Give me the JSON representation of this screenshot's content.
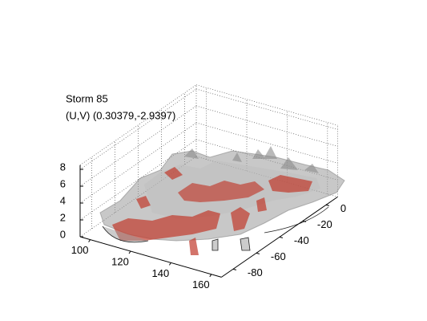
{
  "chart_data": {
    "type": "isosurface3d",
    "title": "Storm 85",
    "subtitle": "(U,V) (0.30379,-2.9397)",
    "xlim": [
      95,
      165
    ],
    "xticks": [
      100,
      120,
      140,
      160
    ],
    "ylim": [
      -90,
      10
    ],
    "yticks": [
      0,
      -20,
      -40,
      -60,
      -80
    ],
    "zlim": [
      0,
      8.5
    ],
    "zticks": [
      0,
      2,
      4,
      6,
      8
    ],
    "grid": true
  }
}
